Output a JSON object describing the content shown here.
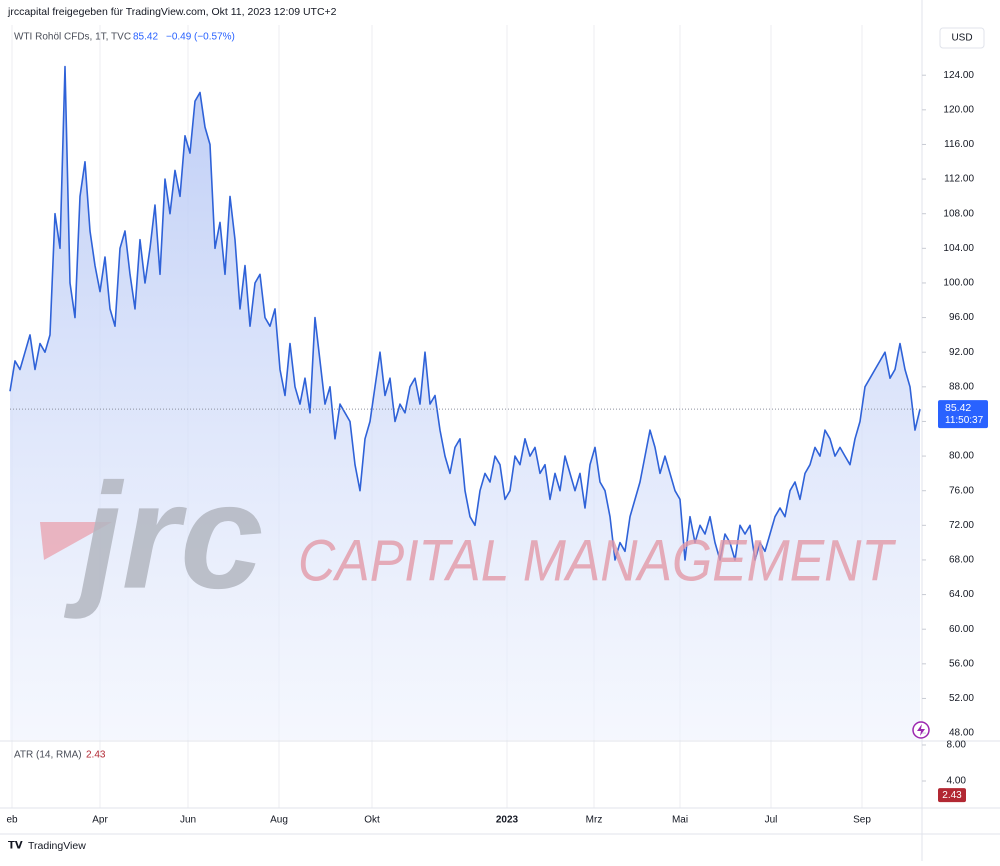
{
  "chart_data": {
    "type": "area",
    "title": "jrccapital freigegeben für TradingView.com, Okt 11, 2023 12:09 UTC+2",
    "symbol": "WTI Rohöl CFDs, 1T, TVC",
    "change": "−0.49",
    "change_pct": "(−0.57%)",
    "currency": "USD",
    "countdown": "11:50:37",
    "footer": "TradingView",
    "watermark": [
      "jrc",
      "CAPITAL MANAGEMENT"
    ],
    "color": "#2f62d8",
    "x": [
      0,
      1,
      2,
      3,
      4,
      5,
      6,
      7,
      8,
      9,
      10,
      11,
      12,
      13,
      14,
      15,
      16,
      17,
      18,
      19,
      20,
      21,
      22,
      23,
      24,
      25,
      26,
      27,
      28,
      29,
      30,
      31,
      32,
      33,
      34,
      35,
      36,
      37,
      38,
      39,
      40,
      41,
      42,
      43,
      44,
      45,
      46,
      47,
      48,
      49,
      50,
      51,
      52,
      53,
      54,
      55,
      56,
      57,
      58,
      59,
      60,
      61,
      62,
      63,
      64,
      65,
      66,
      67,
      68,
      69,
      70,
      71,
      72,
      73,
      74,
      75,
      76,
      77,
      78,
      79,
      80,
      81,
      82,
      83,
      84,
      85,
      86,
      87,
      88,
      89,
      90,
      91,
      92,
      93,
      94,
      95,
      96,
      97,
      98,
      99,
      100,
      101,
      102,
      103,
      104,
      105,
      106,
      107,
      108,
      109,
      110,
      111,
      112,
      113,
      114,
      115,
      116,
      117,
      118,
      119,
      120,
      121,
      122,
      123,
      124,
      125,
      126,
      127,
      128,
      129,
      130,
      131,
      132,
      133,
      134,
      135,
      136,
      137,
      138,
      139,
      140,
      141,
      142,
      143,
      144,
      145,
      146,
      147,
      148,
      149,
      150,
      151,
      152,
      153,
      154,
      155,
      156,
      157,
      158,
      159,
      160,
      161,
      162,
      163,
      164,
      165,
      166,
      167,
      168,
      169,
      170,
      171,
      172,
      173,
      174,
      175,
      176,
      177,
      178,
      179,
      180,
      181,
      182
    ],
    "values": [
      87.5,
      91,
      90,
      92,
      94,
      90,
      93,
      92,
      94,
      108,
      104,
      125,
      100,
      96,
      110,
      114,
      106,
      102,
      99,
      103,
      97,
      95,
      104,
      106,
      101,
      97,
      105,
      100,
      104,
      109,
      101,
      112,
      108,
      113,
      110,
      117,
      115,
      121,
      122,
      118,
      116,
      104,
      107,
      101,
      110,
      105,
      97,
      102,
      95,
      100,
      101,
      96,
      95,
      97,
      90,
      87,
      93,
      88,
      86,
      89,
      85,
      96,
      91,
      86,
      88,
      82,
      86,
      85,
      84,
      79,
      76,
      82,
      84,
      88,
      92,
      87,
      89,
      84,
      86,
      85,
      88,
      89,
      86,
      92,
      86,
      87,
      83,
      80,
      78,
      81,
      82,
      76,
      73,
      72,
      76,
      78,
      77,
      80,
      79,
      75,
      76,
      80,
      79,
      82,
      80,
      81,
      78,
      79,
      75,
      78,
      76,
      80,
      78,
      76,
      78,
      74,
      79,
      81,
      77,
      76,
      73,
      68,
      70,
      69,
      73,
      75,
      77,
      80,
      83,
      81,
      78,
      80,
      78,
      76,
      75,
      68,
      73,
      70,
      72,
      71,
      73,
      70,
      68,
      71,
      70,
      68,
      72,
      71,
      72,
      68,
      70,
      69,
      71,
      73,
      74,
      73,
      76,
      77,
      75,
      78,
      79,
      81,
      80,
      83,
      82,
      80,
      81,
      80,
      79,
      82,
      84,
      88,
      89,
      90,
      91,
      92,
      89,
      90,
      93,
      90,
      88,
      83,
      85.42
    ],
    "xlim": [
      0,
      182.4
    ],
    "xticks": [
      {
        "value": 0.4,
        "label": "eb"
      },
      {
        "value": 18,
        "label": "Apr"
      },
      {
        "value": 35.6,
        "label": "Jun"
      },
      {
        "value": 53.8,
        "label": "Aug"
      },
      {
        "value": 72.4,
        "label": "Okt"
      },
      {
        "value": 99.4,
        "label": "2023"
      },
      {
        "value": 116.8,
        "label": "Mrz"
      },
      {
        "value": 134,
        "label": "Mai"
      },
      {
        "value": 152.2,
        "label": "Jul"
      },
      {
        "value": 170.4,
        "label": "Sep"
      }
    ],
    "ylim": [
      47.2,
      129.8
    ],
    "yticks": [
      {
        "value": 48,
        "label": "48.00"
      },
      {
        "value": 52,
        "label": "52.00"
      },
      {
        "value": 56,
        "label": "56.00"
      },
      {
        "value": 60,
        "label": "60.00"
      },
      {
        "value": 64,
        "label": "64.00"
      },
      {
        "value": 68,
        "label": "68.00"
      },
      {
        "value": 72,
        "label": "72.00"
      },
      {
        "value": 76,
        "label": "76.00"
      },
      {
        "value": 80,
        "label": "80.00"
      },
      {
        "value": 84,
        "label": "84.00"
      },
      {
        "value": 88,
        "label": "88.00"
      },
      {
        "value": 92,
        "label": "92.00"
      },
      {
        "value": 96,
        "label": "96.00"
      },
      {
        "value": 100,
        "label": "100.00"
      },
      {
        "value": 104,
        "label": "104.00"
      },
      {
        "value": 108,
        "label": "108.00"
      },
      {
        "value": 112,
        "label": "112.00"
      },
      {
        "value": 116,
        "label": "116.00"
      },
      {
        "value": 120,
        "label": "120.00"
      },
      {
        "value": 124,
        "label": "124.00"
      }
    ],
    "atr": {
      "label": "ATR (14, RMA)",
      "value": 2.43,
      "ylim": [
        1.0,
        8.33
      ],
      "yticks": [
        {
          "value": 8,
          "label": "8.00"
        },
        {
          "value": 4,
          "label": "4.00"
        }
      ]
    }
  }
}
